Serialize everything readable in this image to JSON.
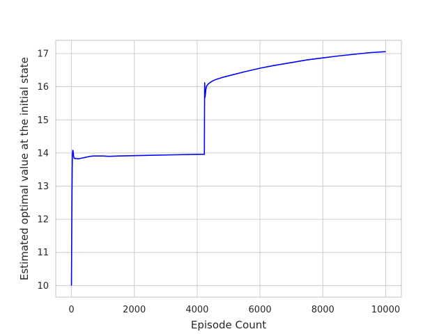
{
  "chart_data": {
    "type": "line",
    "title": "",
    "xlabel": "Episode Count",
    "ylabel": "Estimated optimal value at the initial state",
    "xlim": [
      -500,
      10500
    ],
    "ylim": [
      9.65,
      17.4
    ],
    "xticks": [
      0,
      2000,
      4000,
      6000,
      8000,
      10000
    ],
    "yticks": [
      10,
      11,
      12,
      13,
      14,
      15,
      16,
      17
    ],
    "grid": true,
    "legend": "none",
    "series": [
      {
        "color": "#0000ff",
        "x": [
          0,
          5,
          10,
          15,
          20,
          25,
          30,
          40,
          50,
          60,
          70,
          80,
          90,
          100,
          120,
          150,
          200,
          250,
          300,
          400,
          500,
          600,
          700,
          800,
          1000,
          1200,
          1500,
          2000,
          2500,
          3000,
          3500,
          4000,
          4230,
          4235,
          4240,
          4245,
          4250,
          4260,
          4275,
          4300,
          4350,
          4400,
          4500,
          4600,
          4700,
          4800,
          5000,
          5500,
          6000,
          6500,
          7000,
          7500,
          8000,
          8500,
          9000,
          9500,
          10000
        ],
        "y": [
          10.0,
          11.0,
          11.8,
          12.5,
          13.1,
          13.6,
          13.95,
          14.08,
          14.06,
          14.0,
          13.9,
          13.86,
          13.84,
          13.84,
          13.83,
          13.84,
          13.82,
          13.83,
          13.84,
          13.86,
          13.88,
          13.9,
          13.91,
          13.91,
          13.91,
          13.9,
          13.91,
          13.92,
          13.93,
          13.94,
          13.95,
          13.96,
          13.96,
          15.3,
          16.12,
          15.95,
          15.68,
          15.75,
          15.9,
          16.02,
          16.08,
          16.12,
          16.18,
          16.22,
          16.25,
          16.28,
          16.33,
          16.45,
          16.56,
          16.65,
          16.73,
          16.81,
          16.87,
          16.93,
          16.98,
          17.03,
          17.06
        ]
      }
    ]
  }
}
